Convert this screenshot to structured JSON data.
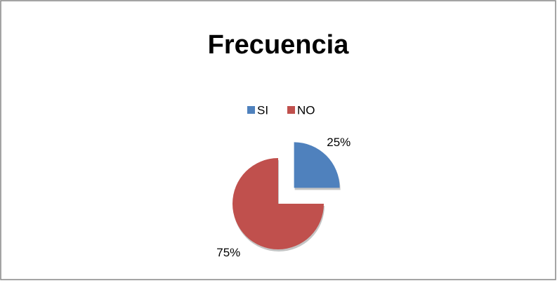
{
  "chart_data": {
    "type": "pie",
    "title": "Frecuencia",
    "categories": [
      "SI",
      "NO"
    ],
    "values": [
      25,
      75
    ],
    "value_labels": [
      "25%",
      "75%"
    ],
    "colors": [
      "#4f81bd",
      "#c0504d"
    ],
    "legend": "top"
  }
}
